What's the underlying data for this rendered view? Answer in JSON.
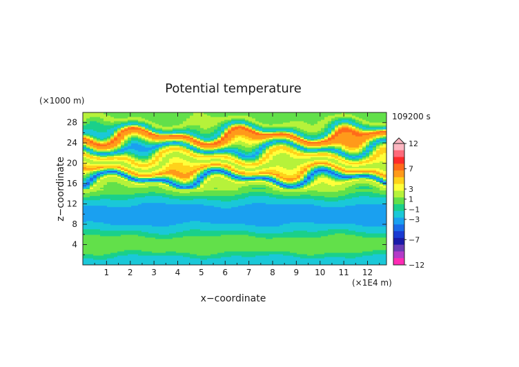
{
  "chart_data": {
    "type": "heatmap",
    "title": "Potential temperature",
    "xlabel": "x−coordinate",
    "ylabel": "z−coordinate",
    "x_unit": "(×1E4 m)",
    "y_unit": "(×1000 m)",
    "time_label": "109200 s",
    "xlim": [
      0,
      12.8
    ],
    "ylim": [
      0,
      30
    ],
    "x_ticks": [
      "1",
      "2",
      "3",
      "4",
      "5",
      "6",
      "7",
      "8",
      "9",
      "10",
      "11",
      "12"
    ],
    "y_ticks": [
      "4",
      "8",
      "12",
      "16",
      "20",
      "24",
      "28"
    ],
    "colorbar": {
      "labels": [
        "12",
        "7",
        "3",
        "1",
        "−1",
        "−3",
        "−7",
        "−12"
      ],
      "range": [
        -12,
        12
      ],
      "colors": [
        "#ffb6c1",
        "#ff6a7a",
        "#ff2a2a",
        "#ff6a1a",
        "#ff9a1a",
        "#ffd21a",
        "#ffff3a",
        "#b6f23a",
        "#62e04a",
        "#1ad08a",
        "#1ac8d8",
        "#1aa0f0",
        "#1a6ae8",
        "#1a3ad2",
        "#1a1aa8",
        "#6a3ab6",
        "#b43ac8",
        "#ff2ab4"
      ]
    },
    "bands": [
      {
        "z": 1.0,
        "value": -2.5
      },
      {
        "z": 2.5,
        "value": 0.0
      },
      {
        "z": 4.0,
        "value": 1.3
      },
      {
        "z": 5.5,
        "value": 0.2
      },
      {
        "z": 7.0,
        "value": -1.8
      },
      {
        "z": 8.5,
        "value": -3.0
      },
      {
        "z": 10.0,
        "value": -3.2
      },
      {
        "z": 11.5,
        "value": -3.0
      },
      {
        "z": 13.0,
        "value": -1.5
      },
      {
        "z": 14.5,
        "value": 1.0
      },
      {
        "z": 16.0,
        "value": 3.0
      },
      {
        "z": 17.0,
        "value": -5.0
      },
      {
        "z": 18.5,
        "value": 6.0
      },
      {
        "z": 20.0,
        "value": 1.5
      },
      {
        "z": 21.5,
        "value": 5.0
      },
      {
        "z": 23.0,
        "value": -3.5
      },
      {
        "z": 24.5,
        "value": 6.0
      },
      {
        "z": 25.5,
        "value": 7.0
      },
      {
        "z": 26.5,
        "value": -2.5
      },
      {
        "z": 28.0,
        "value": 2.0
      },
      {
        "z": 29.5,
        "value": 0.5
      }
    ]
  }
}
